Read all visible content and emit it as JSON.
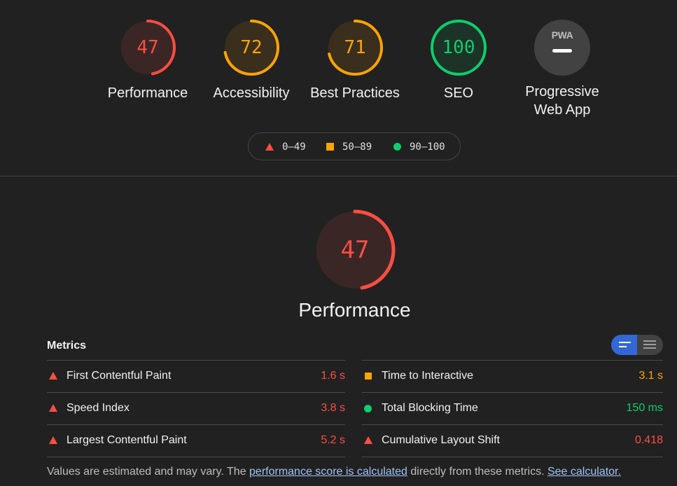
{
  "colors": {
    "fail": "#ff4e42",
    "average": "#ffa400",
    "pass": "#0cce6b"
  },
  "gauges": [
    {
      "score": "47",
      "label": "Performance",
      "rating": "fail",
      "value": 0.47
    },
    {
      "score": "72",
      "label": "Accessibility",
      "rating": "average",
      "value": 0.72
    },
    {
      "score": "71",
      "label": "Best Practices",
      "rating": "average",
      "value": 0.71
    },
    {
      "score": "100",
      "label": "SEO",
      "rating": "pass",
      "value": 1.0
    }
  ],
  "pwa": {
    "badge": "PWA",
    "label_line1": "Progressive",
    "label_line2": "Web App"
  },
  "legend": {
    "fail": "0–49",
    "average": "50–89",
    "pass": "90–100"
  },
  "main": {
    "score": "47",
    "title": "Performance",
    "value": 0.47
  },
  "metrics": {
    "title": "Metrics",
    "left": [
      {
        "label": "First Contentful Paint",
        "value": "1.6 s",
        "rating": "fail"
      },
      {
        "label": "Speed Index",
        "value": "3.8 s",
        "rating": "fail"
      },
      {
        "label": "Largest Contentful Paint",
        "value": "5.2 s",
        "rating": "fail"
      }
    ],
    "right": [
      {
        "label": "Time to Interactive",
        "value": "3.1 s",
        "rating": "average"
      },
      {
        "label": "Total Blocking Time",
        "value": "150 ms",
        "rating": "pass"
      },
      {
        "label": "Cumulative Layout Shift",
        "value": "0.418",
        "rating": "fail"
      }
    ]
  },
  "footnote": {
    "before": "Values are estimated and may vary. The ",
    "link1": "performance score is calculated",
    "middle": " directly from these metrics. ",
    "link2": "See calculator."
  }
}
